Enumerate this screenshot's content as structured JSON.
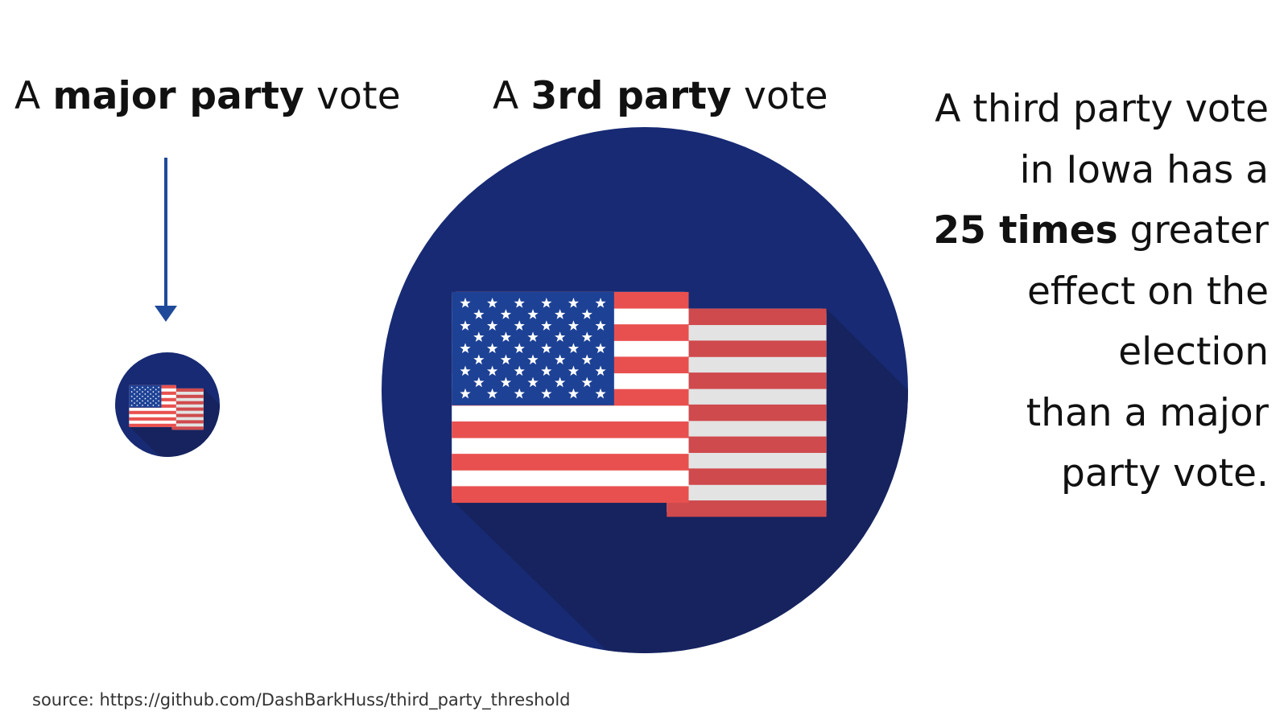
{
  "headings": {
    "major": {
      "prefix": "A ",
      "bold": "major party",
      "suffix": " vote"
    },
    "third": {
      "prefix": "A ",
      "bold": "3rd party",
      "suffix": " vote"
    }
  },
  "claim": {
    "line1": "A third party vote",
    "line2": "in Iowa has a",
    "line3_bold": "25 times",
    "line3_rest": " greater",
    "line4": "effect on the",
    "line5": "election",
    "line6": "than a major",
    "line7": "party vote."
  },
  "source": "source: https://github.com/DashBarkHuss/third_party_threshold",
  "colors": {
    "circle": "#172a73",
    "circle_shadow": "#16235e",
    "arrow": "#1f4a99",
    "flag_red": "#e8504f",
    "flag_red_dark": "#cf4a4d",
    "flag_white": "#ffffff",
    "flag_white_shade": "#e3e3e3",
    "canton": "#1d4195",
    "text": "#111111"
  },
  "icons": {
    "arrow": "arrow-down-icon",
    "flag": "us-flag-icon"
  }
}
